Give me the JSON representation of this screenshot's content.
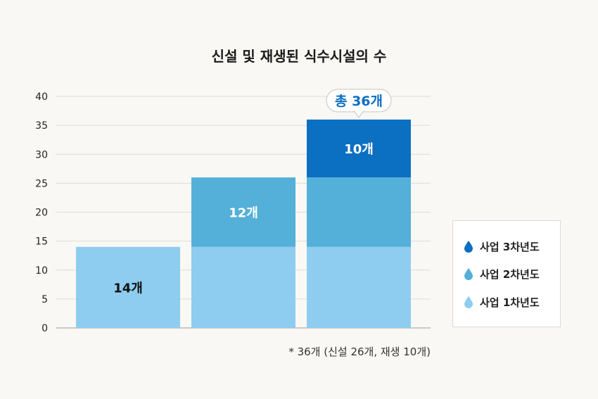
{
  "chart_data": {
    "type": "bar",
    "stacked": true,
    "title": "신설 및 재생된 식수시설의 수",
    "ylim": [
      0,
      40
    ],
    "yticks": [
      0,
      5,
      10,
      15,
      20,
      25,
      30,
      35,
      40
    ],
    "grid": true,
    "legend_position": "right",
    "categories": [
      "",
      "",
      ""
    ],
    "series": [
      {
        "name": "사업 1차년도",
        "color": "#8ecdf0",
        "values": [
          14,
          14,
          14
        ]
      },
      {
        "name": "사업 2차년도",
        "color": "#54b0d8",
        "values": [
          0,
          12,
          12
        ]
      },
      {
        "name": "사업 3차년도",
        "color": "#0b6fc2",
        "values": [
          0,
          0,
          10
        ]
      }
    ],
    "data_labels": [
      {
        "bar": 0,
        "series": 0,
        "text": "14개",
        "color": "#111111"
      },
      {
        "bar": 1,
        "series": 1,
        "text": "12개",
        "color": "#ffffff"
      },
      {
        "bar": 2,
        "series": 2,
        "text": "10개",
        "color": "#ffffff"
      }
    ],
    "callout": {
      "bar": 2,
      "text": "총 36개",
      "color": "#0b6fc2"
    },
    "footnote": "* 36개 (신설 26개, 재생 10개)"
  }
}
